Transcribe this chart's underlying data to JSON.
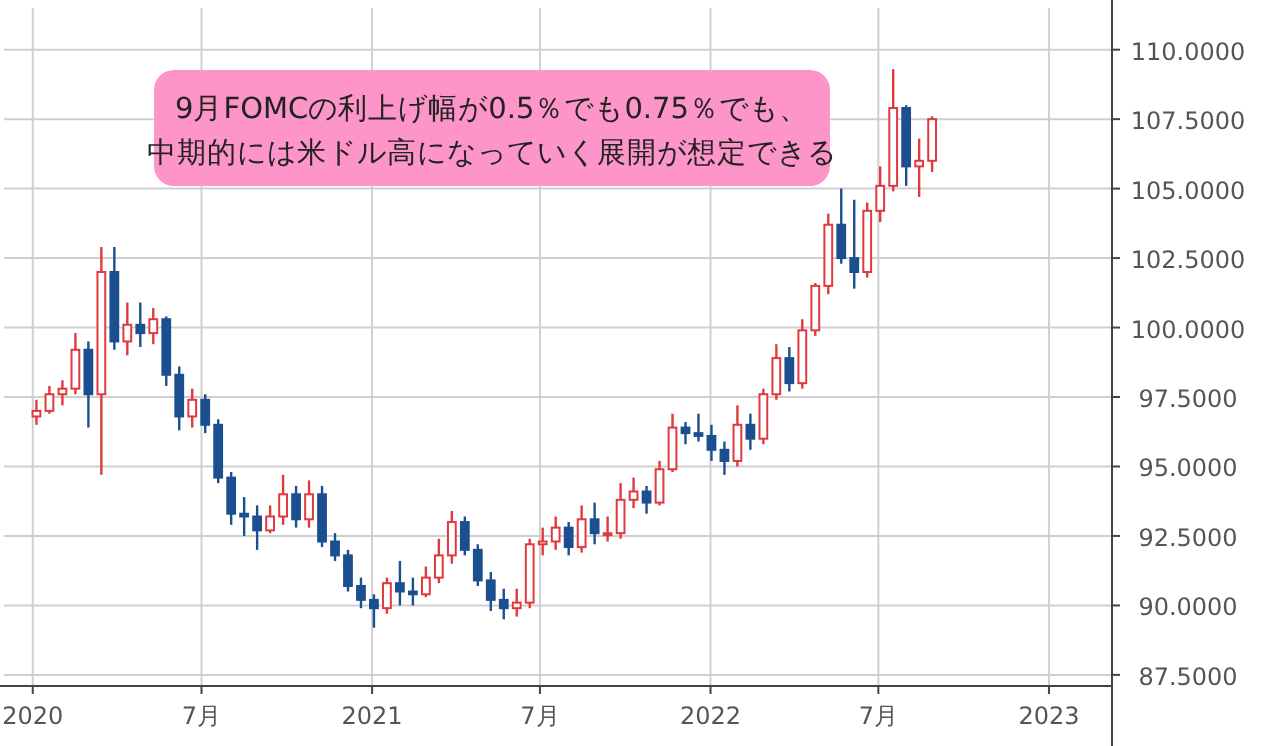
{
  "chart_data": {
    "type": "candlestick",
    "annotations": [
      "9月FOMCの利上げ幅が0.5％でも0.75％でも、",
      "中期的には米ドル高になっていく展開が想定できる"
    ],
    "x": [
      "2020-01-05",
      "2020-01-19",
      "2020-02-02",
      "2020-02-16",
      "2020-03-01",
      "2020-03-15",
      "2020-03-29",
      "2020-04-12",
      "2020-04-26",
      "2020-05-10",
      "2020-05-24",
      "2020-06-07",
      "2020-06-21",
      "2020-07-05",
      "2020-07-19",
      "2020-08-02",
      "2020-08-16",
      "2020-08-30",
      "2020-09-13",
      "2020-09-27",
      "2020-10-11",
      "2020-10-25",
      "2020-11-08",
      "2020-11-22",
      "2020-12-06",
      "2020-12-20",
      "2021-01-03",
      "2021-01-17",
      "2021-01-31",
      "2021-02-14",
      "2021-02-28",
      "2021-03-14",
      "2021-03-28",
      "2021-04-11",
      "2021-04-25",
      "2021-05-09",
      "2021-05-23",
      "2021-06-06",
      "2021-06-20",
      "2021-07-04",
      "2021-07-18",
      "2021-08-01",
      "2021-08-15",
      "2021-08-29",
      "2021-09-12",
      "2021-09-26",
      "2021-10-10",
      "2021-10-24",
      "2021-11-07",
      "2021-11-21",
      "2021-12-05",
      "2021-12-19",
      "2022-01-02",
      "2022-01-16",
      "2022-01-30",
      "2022-02-13",
      "2022-02-27",
      "2022-03-13",
      "2022-03-27",
      "2022-04-10",
      "2022-04-24",
      "2022-05-08",
      "2022-05-22",
      "2022-06-05",
      "2022-06-19",
      "2022-07-03",
      "2022-07-17",
      "2022-07-31",
      "2022-08-14",
      "2022-08-28"
    ],
    "ohlc": [
      [
        96.8,
        97.4,
        96.5,
        97.0
      ],
      [
        97.0,
        97.9,
        96.9,
        97.6
      ],
      [
        97.6,
        98.1,
        97.2,
        97.8
      ],
      [
        97.8,
        99.8,
        97.6,
        99.2
      ],
      [
        99.2,
        99.5,
        96.4,
        97.6
      ],
      [
        97.6,
        102.9,
        94.7,
        102.0
      ],
      [
        102.0,
        102.9,
        99.2,
        99.5
      ],
      [
        99.5,
        100.9,
        99.0,
        100.1
      ],
      [
        100.1,
        100.9,
        99.3,
        99.8
      ],
      [
        99.8,
        100.7,
        99.4,
        100.3
      ],
      [
        100.3,
        100.4,
        97.9,
        98.3
      ],
      [
        98.3,
        98.6,
        96.3,
        96.8
      ],
      [
        96.8,
        97.8,
        96.4,
        97.4
      ],
      [
        97.4,
        97.6,
        96.2,
        96.5
      ],
      [
        96.5,
        96.7,
        94.4,
        94.6
      ],
      [
        94.6,
        94.8,
        92.9,
        93.3
      ],
      [
        93.3,
        93.9,
        92.5,
        93.2
      ],
      [
        93.2,
        93.6,
        92.0,
        92.7
      ],
      [
        92.7,
        93.6,
        92.6,
        93.2
      ],
      [
        93.2,
        94.7,
        92.9,
        94.0
      ],
      [
        94.0,
        94.3,
        92.8,
        93.1
      ],
      [
        93.1,
        94.5,
        92.8,
        94.0
      ],
      [
        94.0,
        94.3,
        92.1,
        92.3
      ],
      [
        92.3,
        92.6,
        91.6,
        91.8
      ],
      [
        91.8,
        92.0,
        90.5,
        90.7
      ],
      [
        90.7,
        91.0,
        89.9,
        90.2
      ],
      [
        90.2,
        90.4,
        89.2,
        89.9
      ],
      [
        89.9,
        91.0,
        89.7,
        90.8
      ],
      [
        90.8,
        91.6,
        90.0,
        90.5
      ],
      [
        90.5,
        91.0,
        90.0,
        90.4
      ],
      [
        90.4,
        91.4,
        90.3,
        91.0
      ],
      [
        91.0,
        92.4,
        90.8,
        91.8
      ],
      [
        91.8,
        93.4,
        91.5,
        93.0
      ],
      [
        93.0,
        93.2,
        91.8,
        92.0
      ],
      [
        92.0,
        92.2,
        90.7,
        90.9
      ],
      [
        90.9,
        91.2,
        89.8,
        90.2
      ],
      [
        90.2,
        90.6,
        89.5,
        89.9
      ],
      [
        89.9,
        90.6,
        89.6,
        90.1
      ],
      [
        90.1,
        92.4,
        89.9,
        92.2
      ],
      [
        92.2,
        92.8,
        91.8,
        92.3
      ],
      [
        92.3,
        93.2,
        92.0,
        92.8
      ],
      [
        92.8,
        93.0,
        91.8,
        92.1
      ],
      [
        92.1,
        93.6,
        91.9,
        93.1
      ],
      [
        93.1,
        93.7,
        92.2,
        92.6
      ],
      [
        92.6,
        93.2,
        92.3,
        92.6
      ],
      [
        92.6,
        94.4,
        92.4,
        93.8
      ],
      [
        93.8,
        94.6,
        93.5,
        94.1
      ],
      [
        94.1,
        94.3,
        93.3,
        93.7
      ],
      [
        93.7,
        95.2,
        93.6,
        94.9
      ],
      [
        94.9,
        96.9,
        94.8,
        96.4
      ],
      [
        96.4,
        96.6,
        95.8,
        96.2
      ],
      [
        96.2,
        96.9,
        95.9,
        96.1
      ],
      [
        96.1,
        96.5,
        95.2,
        95.6
      ],
      [
        95.6,
        95.9,
        94.7,
        95.2
      ],
      [
        95.2,
        97.2,
        95.0,
        96.5
      ],
      [
        96.5,
        96.9,
        95.6,
        96.0
      ],
      [
        96.0,
        97.8,
        95.8,
        97.6
      ],
      [
        97.6,
        99.4,
        97.4,
        98.9
      ],
      [
        98.9,
        99.3,
        97.7,
        98.0
      ],
      [
        98.0,
        100.3,
        97.8,
        99.9
      ],
      [
        99.9,
        101.6,
        99.7,
        101.5
      ],
      [
        101.5,
        104.1,
        101.2,
        103.7
      ],
      [
        103.7,
        105.0,
        102.3,
        102.5
      ],
      [
        102.5,
        104.6,
        101.4,
        102.0
      ],
      [
        102.0,
        104.5,
        101.8,
        104.2
      ],
      [
        104.2,
        105.8,
        103.8,
        105.1
      ],
      [
        105.1,
        109.3,
        104.9,
        107.9
      ],
      [
        107.9,
        108.0,
        105.1,
        105.8
      ],
      [
        105.8,
        106.8,
        104.7,
        106.0
      ],
      [
        106.0,
        107.6,
        105.6,
        107.5
      ]
    ],
    "xlim": [
      "2019-12-01",
      "2023-03-10"
    ],
    "xticks": [
      {
        "value": "2020-01-01",
        "label": "2020"
      },
      {
        "value": "2020-07-01",
        "label": "7月"
      },
      {
        "value": "2021-01-01",
        "label": "2021"
      },
      {
        "value": "2021-07-01",
        "label": "7月"
      },
      {
        "value": "2022-01-01",
        "label": "2022"
      },
      {
        "value": "2022-07-01",
        "label": "7月"
      },
      {
        "value": "2023-01-01",
        "label": "2023"
      }
    ],
    "ylim": [
      87.1,
      111.5
    ],
    "yticks": [
      {
        "value": 87.5,
        "label": "87.5000"
      },
      {
        "value": 90,
        "label": "90.0000"
      },
      {
        "value": 92.5,
        "label": "92.5000"
      },
      {
        "value": 95,
        "label": "95.0000"
      },
      {
        "value": 97.5,
        "label": "97.5000"
      },
      {
        "value": 100,
        "label": "100.0000"
      },
      {
        "value": 102.5,
        "label": "102.5000"
      },
      {
        "value": 105,
        "label": "105.0000"
      },
      {
        "value": 107.5,
        "label": "107.5000"
      },
      {
        "value": 110,
        "label": "110.0000"
      }
    ],
    "grid": true
  }
}
